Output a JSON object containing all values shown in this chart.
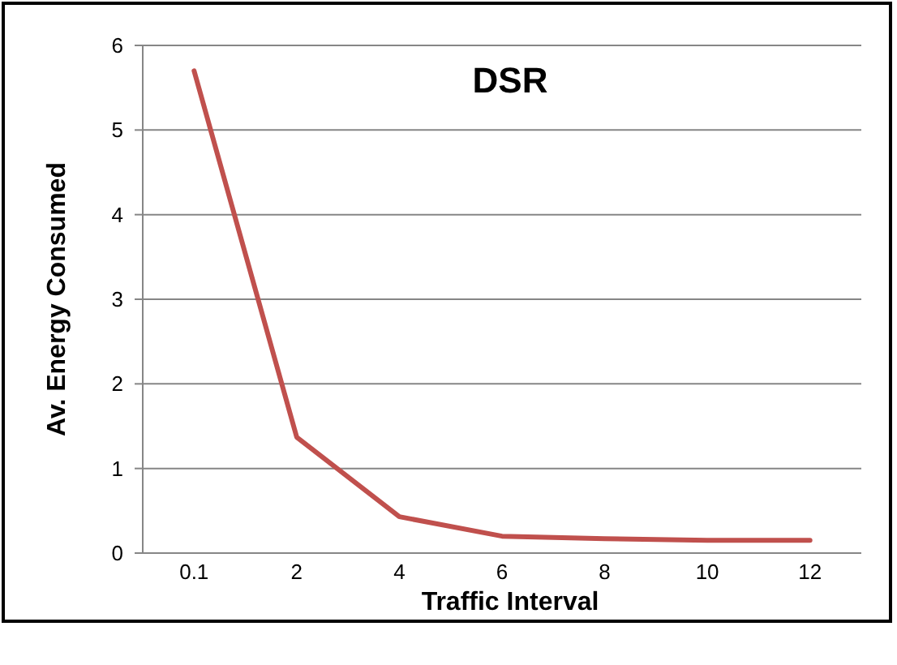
{
  "chart_data": {
    "type": "line",
    "title": "DSR",
    "xlabel": "Traffic Interval",
    "ylabel": "Av. Energy Consumed",
    "categories": [
      "0.1",
      "2",
      "4",
      "6",
      "8",
      "10",
      "12"
    ],
    "series": [
      {
        "color": "#c0504d",
        "values": [
          5.7,
          1.37,
          0.43,
          0.2,
          0.17,
          0.15,
          0.15
        ]
      }
    ],
    "ylim": [
      0,
      6
    ],
    "yticks": [
      0,
      1,
      2,
      3,
      4,
      5,
      6
    ],
    "grid": "y",
    "marker": "none",
    "line_style": "solid"
  }
}
